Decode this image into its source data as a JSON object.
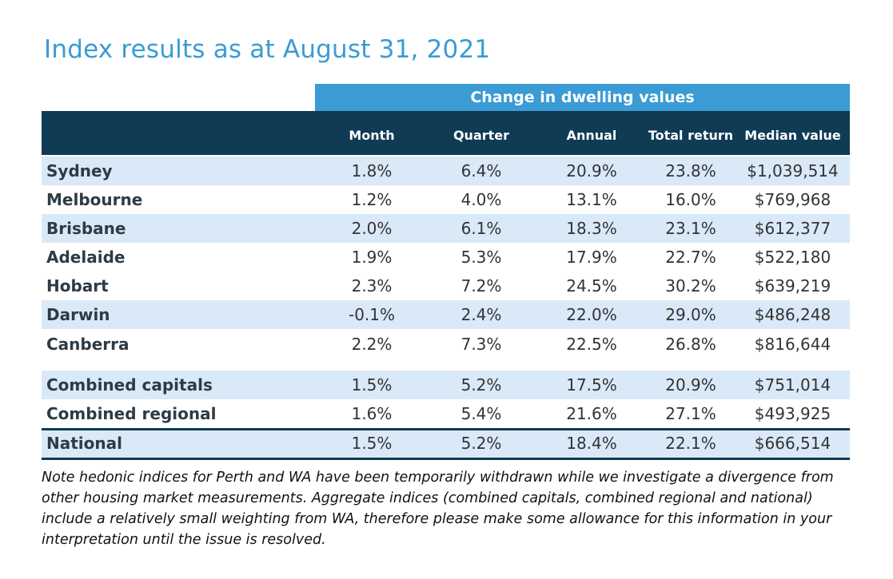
{
  "title": "Index results as at August 31, 2021",
  "super_header": "Change in dwelling values",
  "columns": [
    "Month",
    "Quarter",
    "Annual",
    "Total return",
    "Median value"
  ],
  "rows": [
    {
      "city": "Sydney",
      "month": "1.8%",
      "quarter": "6.4%",
      "annual": "20.9%",
      "total_return": "23.8%",
      "median": "$1,039,514"
    },
    {
      "city": "Melbourne",
      "month": "1.2%",
      "quarter": "4.0%",
      "annual": "13.1%",
      "total_return": "16.0%",
      "median": "$769,968"
    },
    {
      "city": "Brisbane",
      "month": "2.0%",
      "quarter": "6.1%",
      "annual": "18.3%",
      "total_return": "23.1%",
      "median": "$612,377"
    },
    {
      "city": "Adelaide",
      "month": "1.9%",
      "quarter": "5.3%",
      "annual": "17.9%",
      "total_return": "22.7%",
      "median": "$522,180"
    },
    {
      "city": "Hobart",
      "month": "2.3%",
      "quarter": "7.2%",
      "annual": "24.5%",
      "total_return": "30.2%",
      "median": "$639,219"
    },
    {
      "city": "Darwin",
      "month": "-0.1%",
      "quarter": "2.4%",
      "annual": "22.0%",
      "total_return": "29.0%",
      "median": "$486,248"
    },
    {
      "city": "Canberra",
      "month": "2.2%",
      "quarter": "7.3%",
      "annual": "22.5%",
      "total_return": "26.8%",
      "median": "$816,644"
    },
    {
      "city": "Combined capitals",
      "month": "1.5%",
      "quarter": "5.2%",
      "annual": "17.5%",
      "total_return": "20.9%",
      "median": "$751,014"
    },
    {
      "city": "Combined regional",
      "month": "1.6%",
      "quarter": "5.4%",
      "annual": "21.6%",
      "total_return": "27.1%",
      "median": "$493,925"
    },
    {
      "city": "National",
      "month": "1.5%",
      "quarter": "5.2%",
      "annual": "18.4%",
      "total_return": "22.1%",
      "median": "$666,514"
    }
  ],
  "note": "Note hedonic indices for Perth and WA have been temporarily withdrawn while we investigate a divergence from other housing market measurements. Aggregate indices (combined capitals, combined regional and national) include a relatively small weighting from WA, therefore please make some allowance for this information in your interpretation until the issue is resolved.",
  "colors": {
    "accent": "#3a9bd5",
    "header": "#0f3b55",
    "stripe": "#d9e9f7"
  }
}
